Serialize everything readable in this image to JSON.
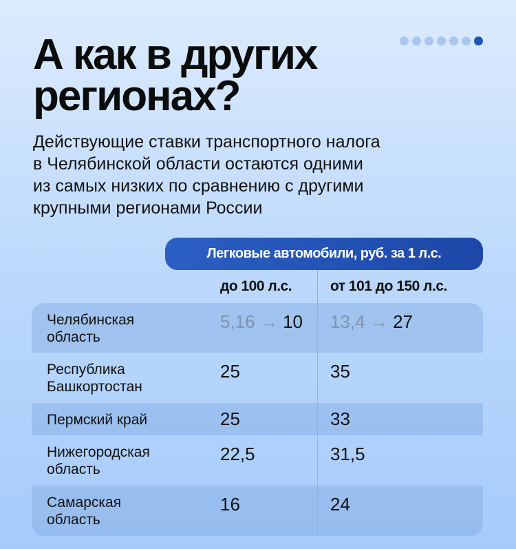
{
  "title_lines": [
    "А как в других",
    "регионах?"
  ],
  "pagination": {
    "total": 7,
    "active": 7
  },
  "subtitle_lines": [
    "Действующие ставки транспортного налога",
    "в Челябинской области остаются одними",
    "из самых низких по сравнению с другими",
    "крупными регионами России"
  ],
  "table": {
    "group_header": "Легковые автомобили, руб. за 1 л.с.",
    "columns": [
      "до 100 л.с.",
      "от 101 до 150 л.с."
    ],
    "arrow": "→",
    "rows": [
      {
        "region": [
          "Челябинская",
          "область"
        ],
        "old": [
          "5,16",
          "13,4"
        ],
        "values": [
          "10",
          "27"
        ]
      },
      {
        "region": [
          "Республика",
          "Башкортостан"
        ],
        "values": [
          "25",
          "35"
        ]
      },
      {
        "region": [
          "Пермский край"
        ],
        "values": [
          "25",
          "33"
        ]
      },
      {
        "region": [
          "Нижегородская",
          "область"
        ],
        "values": [
          "22,5",
          "31,5"
        ]
      },
      {
        "region": [
          "Самарская",
          "область"
        ],
        "values": [
          "16",
          "24"
        ]
      }
    ]
  },
  "colors": {
    "accent": "#1e56b8",
    "dot_inactive": "#a9c7ee"
  }
}
